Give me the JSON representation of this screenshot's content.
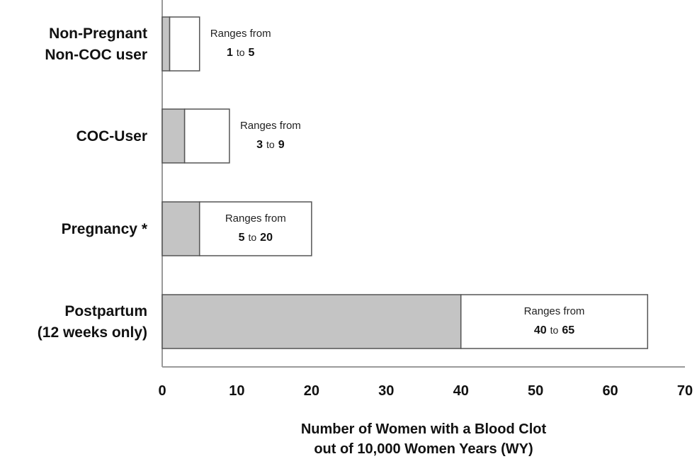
{
  "chart_data": {
    "type": "bar",
    "orientation": "horizontal",
    "stacked": true,
    "categories": [
      [
        "Non-Pregnant",
        "Non-COC user"
      ],
      [
        "COC-User"
      ],
      [
        "Pregnancy *"
      ],
      [
        "Postpartum",
        "(12 weeks only)"
      ]
    ],
    "series": [
      {
        "values": [
          1,
          3,
          5,
          40
        ],
        "color": "#c4c4c4"
      },
      {
        "values": [
          4,
          6,
          15,
          25
        ],
        "color": "#ffffff"
      }
    ],
    "ranges": [
      {
        "prefix": "Ranges from",
        "low": "1",
        "to": "to",
        "high": "5"
      },
      {
        "prefix": "Ranges from",
        "low": "3",
        "to": "to",
        "high": "9"
      },
      {
        "prefix": "Ranges from",
        "low": "5",
        "to": "to",
        "high": "20"
      },
      {
        "prefix": "Ranges from",
        "low": "40",
        "to": "to",
        "high": "65"
      }
    ],
    "xlim": [
      0,
      70
    ],
    "xticks": [
      "0",
      "10",
      "20",
      "30",
      "40",
      "50",
      "60",
      "70"
    ],
    "xlabel": [
      "Number of Women with a  Blood Clot",
      "out of  10,000 Women Years (WY)"
    ],
    "ylabel": "",
    "title": "",
    "grid": false,
    "legend": "none",
    "colors": {
      "low_fill": "#c4c4c4",
      "high_fill": "#ffffff",
      "stroke": "#555555",
      "axis": "#9a9a9a"
    }
  }
}
